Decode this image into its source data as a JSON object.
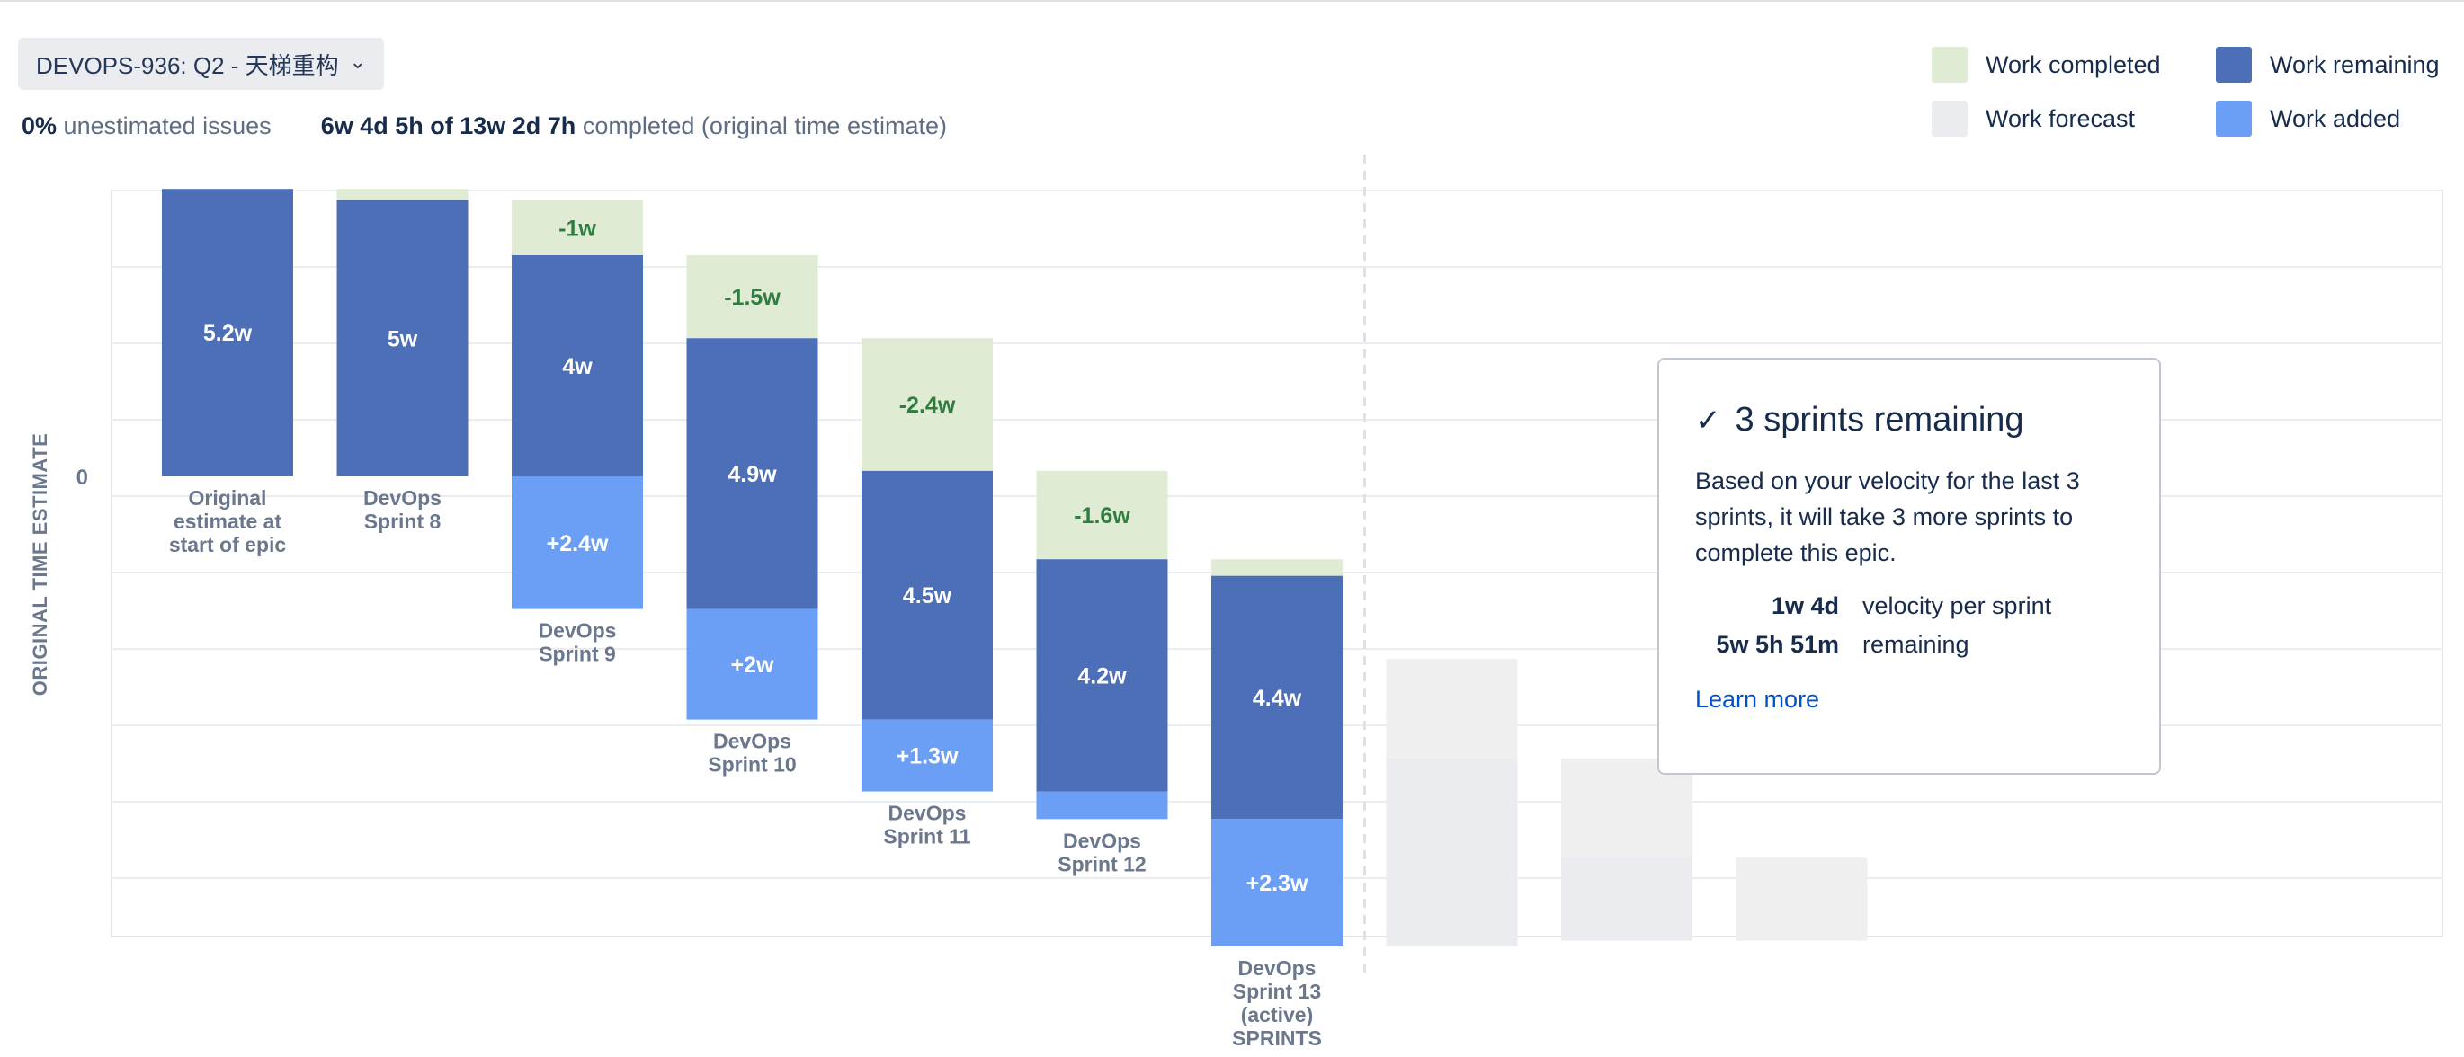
{
  "header": {
    "epic_select": "DEVOPS-936: Q2 - 天梯重构",
    "unestimated_pct": "0%",
    "unestimated_label": "unestimated issues",
    "completed_value": "6w 4d 5h of 13w 2d 7h",
    "completed_label": "completed (original time estimate)"
  },
  "legend": [
    {
      "label": "Work completed",
      "color": "#dfecd3"
    },
    {
      "label": "Work remaining",
      "color": "#4c6fb8"
    },
    {
      "label": "Work forecast",
      "color": "#ebecf0"
    },
    {
      "label": "Work added",
      "color": "#6b9ef5"
    }
  ],
  "tooltip": {
    "title": "3 sprints remaining",
    "description": "Based on your velocity for the last 3 sprints, it will take 3 more sprints to complete this epic.",
    "velocity_value": "1w 4d",
    "velocity_label": "velocity per sprint",
    "remaining_value": "5w 5h 51m",
    "remaining_label": "remaining",
    "learn_more": "Learn more"
  },
  "chart_data": {
    "type": "bar",
    "ylabel": "ORIGINAL TIME ESTIMATE",
    "xlabel": "SPRINTS",
    "zero_label": "0",
    "y_unit": "weeks",
    "bars": [
      {
        "category": [
          "Original",
          "estimate at",
          "start of epic"
        ],
        "top": 5.2,
        "completed": 0,
        "remaining": 5.2,
        "added": 0,
        "remaining_label": "5.2w"
      },
      {
        "category": [
          "DevOps",
          "Sprint 8"
        ],
        "top": 5.2,
        "completed": 0.2,
        "remaining": 5.0,
        "added": 0,
        "remaining_label": "5w"
      },
      {
        "category": [
          "DevOps",
          "Sprint 9"
        ],
        "top": 5.0,
        "completed": 1.0,
        "completed_label": "-1w",
        "remaining": 4.0,
        "remaining_label": "4w",
        "added": 2.4,
        "added_label": "+2.4w"
      },
      {
        "category": [
          "DevOps",
          "Sprint 10"
        ],
        "top": 4.0,
        "completed": 1.5,
        "completed_label": "-1.5w",
        "remaining": 4.9,
        "remaining_label": "4.9w",
        "added": 2.0,
        "added_label": "+2w"
      },
      {
        "category": [
          "DevOps",
          "Sprint 11"
        ],
        "top": 2.5,
        "completed": 2.4,
        "completed_label": "-2.4w",
        "remaining": 4.5,
        "remaining_label": "4.5w",
        "added": 1.3,
        "added_label": "+1.3w"
      },
      {
        "category": [
          "DevOps",
          "Sprint 12"
        ],
        "top": 0.1,
        "completed": 1.6,
        "completed_label": "-1.6w",
        "remaining": 4.2,
        "remaining_label": "4.2w",
        "added": 0.5
      },
      {
        "category": [
          "DevOps",
          "Sprint 13",
          "(active)"
        ],
        "top": -1.5,
        "completed": 0.3,
        "remaining": 4.4,
        "remaining_label": "4.4w",
        "added": 2.3,
        "added_label": "+2.3w"
      }
    ],
    "forecast": [
      {
        "top": -3.3,
        "completed": 1.8,
        "remaining": 3.4
      },
      {
        "top": -5.1,
        "completed": 1.8,
        "remaining": 1.5
      },
      {
        "top": -6.9,
        "completed": 1.5,
        "remaining": 0
      }
    ]
  }
}
